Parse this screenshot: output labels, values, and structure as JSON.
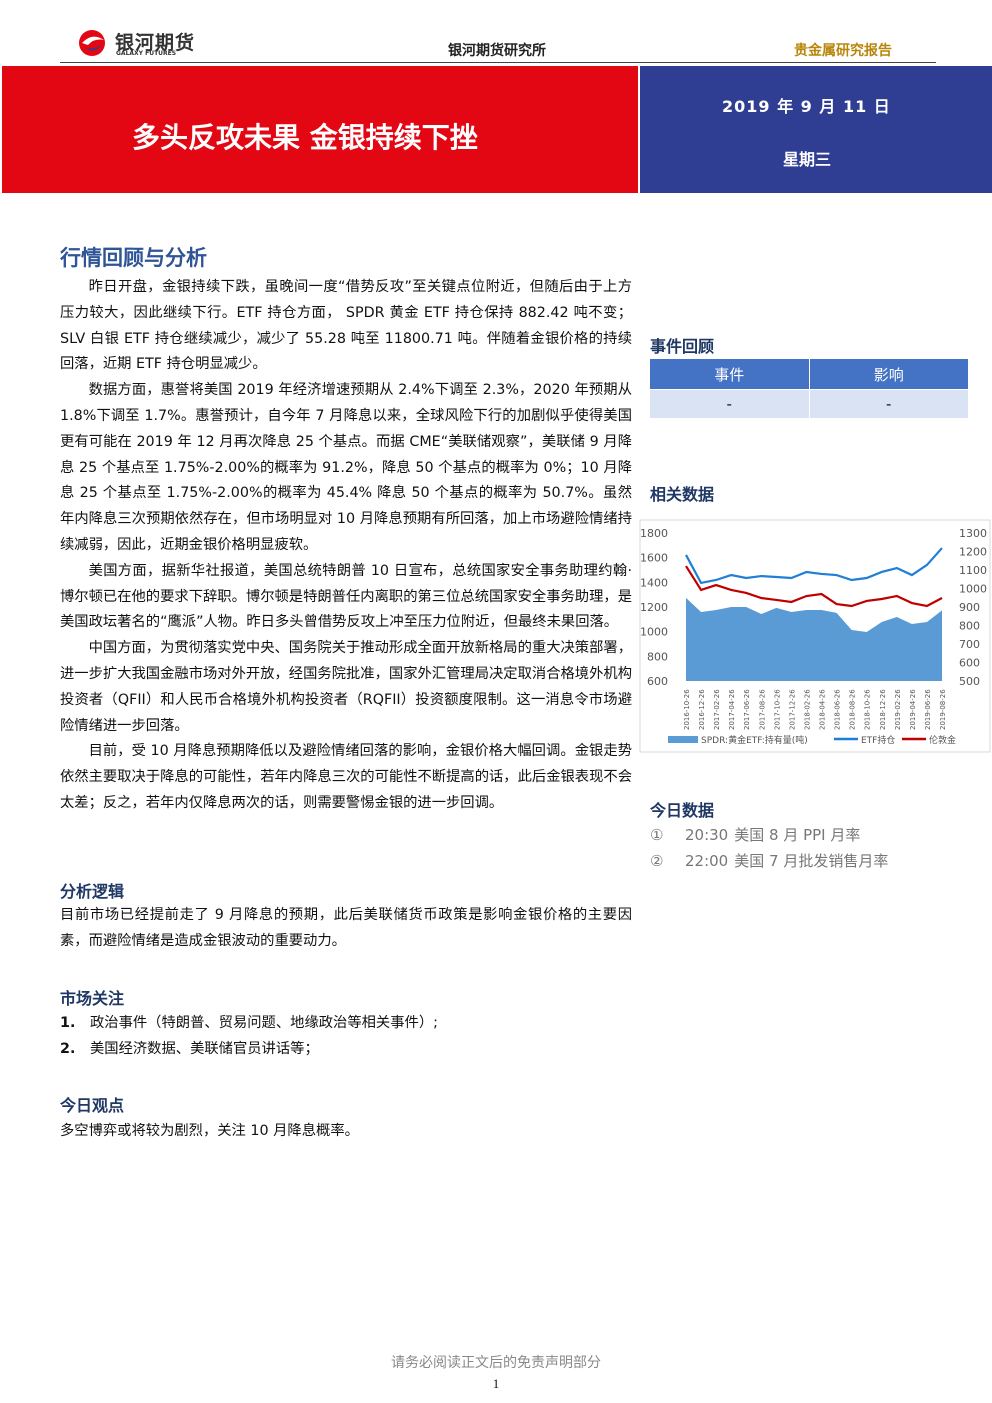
{
  "header": {
    "logo_cn": "银河期货",
    "logo_en": "GALAXY FUTURES",
    "institute": "银河期货研究所",
    "report_type": "贵金属研究报告"
  },
  "banner": {
    "title": "多头反攻未果 金银持续下挫",
    "date": "2019 年 9 月 11 日",
    "weekday": "星期三"
  },
  "review": {
    "heading": "行情回顾与分析",
    "paragraphs": [
      "昨日开盘，金银持续下跌，虽晚间一度“借势反攻”至关键点位附近，但随后由于上方压力较大，因此继续下行。ETF 持仓方面， SPDR 黄金 ETF 持仓保持 882.42 吨不变；SLV 白银 ETF 持仓继续减少，减少了 55.28 吨至 11800.71 吨。伴随着金银价格的持续回落，近期 ETF 持仓明显减少。",
      "数据方面，惠誉将美国 2019 年经济增速预期从 2.4%下调至 2.3%，2020 年预期从 1.8%下调至 1.7%。惠誉预计，自今年 7 月降息以来，全球风险下行的加剧似乎使得美国更有可能在 2019 年 12 月再次降息 25 个基点。而据 CME“美联储观察”，美联储 9 月降息 25 个基点至 1.75%-2.00%的概率为 91.2%，降息 50 个基点的概率为 0%；10 月降息 25 个基点至 1.75%-2.00%的概率为 45.4% 降息 50 个基点的概率为 50.7%。虽然年内降息三次预期依然存在，但市场明显对 10 月降息预期有所回落，加上市场避险情绪持续减弱，因此，近期金银价格明显疲软。",
      "美国方面，据新华社报道，美国总统特朗普 10 日宣布，总统国家安全事务助理约翰·博尔顿已在他的要求下辞职。博尔顿是特朗普任内离职的第三位总统国家安全事务助理，是美国政坛著名的“鹰派”人物。昨日多头曾借势反攻上冲至压力位附近，但最终未果回落。",
      "中国方面，为贯彻落实党中央、国务院关于推动形成全面开放新格局的重大决策部署，进一步扩大我国金融市场对外开放，经国务院批准，国家外汇管理局决定取消合格境外机构投资者（QFII）和人民币合格境外机构投资者（RQFII）投资额度限制。这一消息令市场避险情绪进一步回落。",
      "目前，受 10 月降息预期降低以及避险情绪回落的影响，金银价格大幅回调。金银走势依然主要取决于降息的可能性，若年内降息三次的可能性不断提高的话，此后金银表现不会太差；反之，若年内仅降息两次的话，则需要警惕金银的进一步回调。"
    ]
  },
  "logic": {
    "heading": "分析逻辑",
    "text": "目前市场已经提前走了 9 月降息的预期，此后美联储货币政策是影响金银价格的主要因素，而避险情绪是造成金银波动的重要动力。"
  },
  "focus": {
    "heading": "市场关注",
    "items": [
      {
        "num": "1.",
        "text": "政治事件（特朗普、贸易问题、地缘政治等相关事件）;"
      },
      {
        "num": "2.",
        "text": "美国经济数据、美联储官员讲话等；"
      }
    ]
  },
  "view": {
    "heading": "今日观点",
    "text": "多空博弈或将较为剧烈，关注 10 月降息概率。"
  },
  "events": {
    "heading": "事件回顾",
    "headers": [
      "事件",
      "影响"
    ],
    "rows": [
      [
        "-",
        "-"
      ]
    ]
  },
  "related": {
    "heading": "相关数据"
  },
  "chart_data": {
    "type": "combo",
    "categories": [
      "2016-10-26",
      "2016-12-26",
      "2017-02-26",
      "2017-04-26",
      "2017-06-26",
      "2017-08-26",
      "2017-10-26",
      "2017-12-26",
      "2018-02-26",
      "2018-04-26",
      "2018-06-26",
      "2018-08-26",
      "2018-10-26",
      "2018-12-26",
      "2019-02-26",
      "2019-04-26",
      "2019-06-26",
      "2019-08-26"
    ],
    "series": [
      {
        "name": "SPDR:黄金ETF:持有量(吨)",
        "kind": "area",
        "axis": "y2",
        "color": "#5b9bd5",
        "values": [
          949,
          873,
          884,
          900,
          900,
          862,
          895,
          873,
          884,
          884,
          868,
          776,
          765,
          819,
          846,
          808,
          819,
          882
        ]
      },
      {
        "name": "ETF持仓",
        "kind": "line",
        "color": "#1f7fd6",
        "values": [
          1622,
          1395,
          1419,
          1459,
          1435,
          1451,
          1443,
          1435,
          1484,
          1468,
          1459,
          1419,
          1435,
          1484,
          1516,
          1459,
          1541,
          1678
        ]
      },
      {
        "name": "伦敦金",
        "kind": "line",
        "color": "#c00000",
        "values": [
          1532,
          1338,
          1378,
          1338,
          1314,
          1273,
          1257,
          1241,
          1289,
          1305,
          1224,
          1208,
          1249,
          1265,
          1289,
          1232,
          1208,
          1273
        ]
      }
    ],
    "ylim": [
      600,
      1800
    ],
    "yticks": [
      600,
      800,
      1000,
      1200,
      1400,
      1600,
      1800
    ],
    "y2lim": [
      500,
      1300
    ],
    "y2ticks": [
      500,
      600,
      700,
      800,
      900,
      1000,
      1100,
      1200,
      1300
    ]
  },
  "today": {
    "heading": "今日数据",
    "items": [
      {
        "num": "①",
        "time": "20:30",
        "text": "美国 8 月 PPI 月率"
      },
      {
        "num": "②",
        "time": "22:00",
        "text": "美国 7 月批发销售月率"
      }
    ]
  },
  "footer": {
    "disclaimer": "请务必阅读正文后的免责声明部分",
    "page": "1"
  }
}
